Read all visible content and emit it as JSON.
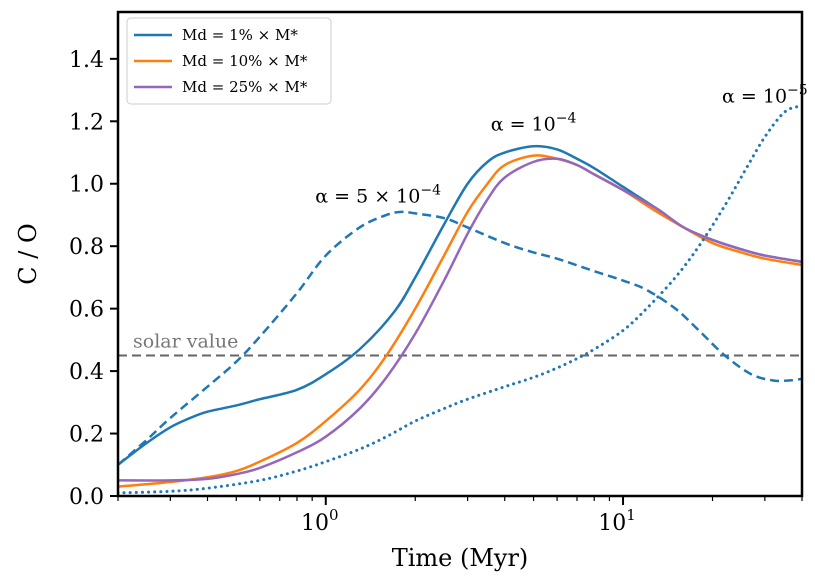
{
  "chart_data": {
    "type": "line",
    "title": "",
    "xlabel": "Time (Myr)",
    "ylabel": "C / O",
    "xscale": "log",
    "xlim": [
      0.2,
      40
    ],
    "ylim": [
      0.0,
      1.55
    ],
    "grid": false,
    "y_ticks": [
      {
        "value": 0.0,
        "label": "0.0"
      },
      {
        "value": 0.2,
        "label": "0.2"
      },
      {
        "value": 0.4,
        "label": "0.4"
      },
      {
        "value": 0.6,
        "label": "0.6"
      },
      {
        "value": 0.8,
        "label": "0.8"
      },
      {
        "value": 1.0,
        "label": "1.0"
      },
      {
        "value": 1.2,
        "label": "1.2"
      },
      {
        "value": 1.4,
        "label": "1.4"
      }
    ],
    "x_major_ticks": [
      {
        "value": 1,
        "base": "10",
        "exp": "0"
      },
      {
        "value": 10,
        "base": "10",
        "exp": "1"
      }
    ],
    "legend": {
      "placement": "top-left",
      "entries": [
        {
          "label": "Md = 1% × M*",
          "color": "#1f77b4"
        },
        {
          "label": "Md = 10% × M*",
          "color": "#ff7f0e"
        },
        {
          "label": "Md = 25% × M*",
          "color": "#9467bd"
        }
      ]
    },
    "reference_line": {
      "y": 0.45,
      "label": "solar value",
      "color": "#666666",
      "style": "dashed"
    },
    "annotations": [
      {
        "base": "α = 10",
        "exp": "−4",
        "x": 5.0,
        "y": 1.17
      },
      {
        "base": "α = 5 × 10",
        "exp": "−4",
        "x": 1.5,
        "y": 0.94
      },
      {
        "base": "α = 10",
        "exp": "−5",
        "x": 30.0,
        "y": 1.26
      }
    ],
    "series": [
      {
        "name": "Md = 1% × M*",
        "color": "#1f77b4",
        "style": "solid",
        "x": [
          0.2,
          0.25,
          0.3,
          0.35,
          0.4,
          0.5,
          0.6,
          0.8,
          1.0,
          1.3,
          1.7,
          2.0,
          2.5,
          3.0,
          3.5,
          4.0,
          5.0,
          6.0,
          7.0,
          8.0,
          10.0,
          13.0,
          16.0,
          20.0,
          25.0,
          30.0,
          40.0
        ],
        "y": [
          0.1,
          0.17,
          0.22,
          0.25,
          0.27,
          0.29,
          0.31,
          0.34,
          0.39,
          0.47,
          0.59,
          0.7,
          0.87,
          1.0,
          1.07,
          1.1,
          1.12,
          1.11,
          1.08,
          1.05,
          0.99,
          0.92,
          0.86,
          0.82,
          0.79,
          0.77,
          0.75
        ]
      },
      {
        "name": "Md = 10% × M*",
        "color": "#ff7f0e",
        "style": "solid",
        "x": [
          0.2,
          0.3,
          0.4,
          0.5,
          0.6,
          0.8,
          1.0,
          1.3,
          1.6,
          2.0,
          2.5,
          3.0,
          3.5,
          4.0,
          5.0,
          6.0,
          7.0,
          8.0,
          10.0,
          13.0,
          16.0,
          20.0,
          25.0,
          30.0,
          40.0
        ],
        "y": [
          0.03,
          0.045,
          0.06,
          0.08,
          0.11,
          0.17,
          0.24,
          0.34,
          0.45,
          0.6,
          0.77,
          0.91,
          1.0,
          1.06,
          1.09,
          1.08,
          1.06,
          1.03,
          0.98,
          0.91,
          0.86,
          0.81,
          0.78,
          0.76,
          0.74
        ]
      },
      {
        "name": "Md = 25% × M*",
        "color": "#9467bd",
        "style": "solid",
        "x": [
          0.2,
          0.3,
          0.4,
          0.5,
          0.6,
          0.8,
          1.0,
          1.3,
          1.6,
          2.0,
          2.5,
          3.0,
          3.5,
          4.0,
          5.0,
          6.0,
          7.0,
          8.0,
          10.0,
          13.0,
          16.0,
          20.0,
          25.0,
          30.0,
          40.0
        ],
        "y": [
          0.05,
          0.05,
          0.055,
          0.07,
          0.09,
          0.14,
          0.19,
          0.28,
          0.38,
          0.52,
          0.69,
          0.84,
          0.95,
          1.02,
          1.07,
          1.08,
          1.06,
          1.03,
          0.98,
          0.92,
          0.86,
          0.82,
          0.79,
          0.77,
          0.75
        ]
      },
      {
        "name": "α = 5 × 10^-4",
        "color": "#1f77b4",
        "style": "dashed",
        "x": [
          0.2,
          0.25,
          0.3,
          0.4,
          0.5,
          0.6,
          0.8,
          1.0,
          1.3,
          1.6,
          1.8,
          2.0,
          2.5,
          3.0,
          4.0,
          5.0,
          6.0,
          8.0,
          10.0,
          12.0,
          15.0,
          18.0,
          22.0,
          27.0,
          32.0,
          36.0,
          40.0
        ],
        "y": [
          0.1,
          0.18,
          0.25,
          0.35,
          0.43,
          0.51,
          0.65,
          0.77,
          0.86,
          0.9,
          0.91,
          0.905,
          0.89,
          0.86,
          0.81,
          0.78,
          0.76,
          0.72,
          0.69,
          0.66,
          0.6,
          0.53,
          0.45,
          0.39,
          0.37,
          0.37,
          0.375
        ]
      },
      {
        "name": "α = 10^-5",
        "color": "#1f77b4",
        "style": "dotted",
        "x": [
          0.2,
          0.3,
          0.4,
          0.6,
          0.8,
          1.0,
          1.3,
          1.6,
          2.0,
          2.5,
          3.0,
          4.0,
          5.0,
          6.0,
          7.0,
          8.0,
          10.0,
          12.0,
          15.0,
          18.0,
          22.0,
          26.0,
          30.0,
          35.0,
          40.0
        ],
        "y": [
          0.01,
          0.015,
          0.025,
          0.05,
          0.08,
          0.11,
          0.15,
          0.19,
          0.24,
          0.28,
          0.31,
          0.35,
          0.38,
          0.41,
          0.44,
          0.47,
          0.53,
          0.6,
          0.7,
          0.8,
          0.93,
          1.05,
          1.15,
          1.23,
          1.25
        ]
      }
    ]
  }
}
